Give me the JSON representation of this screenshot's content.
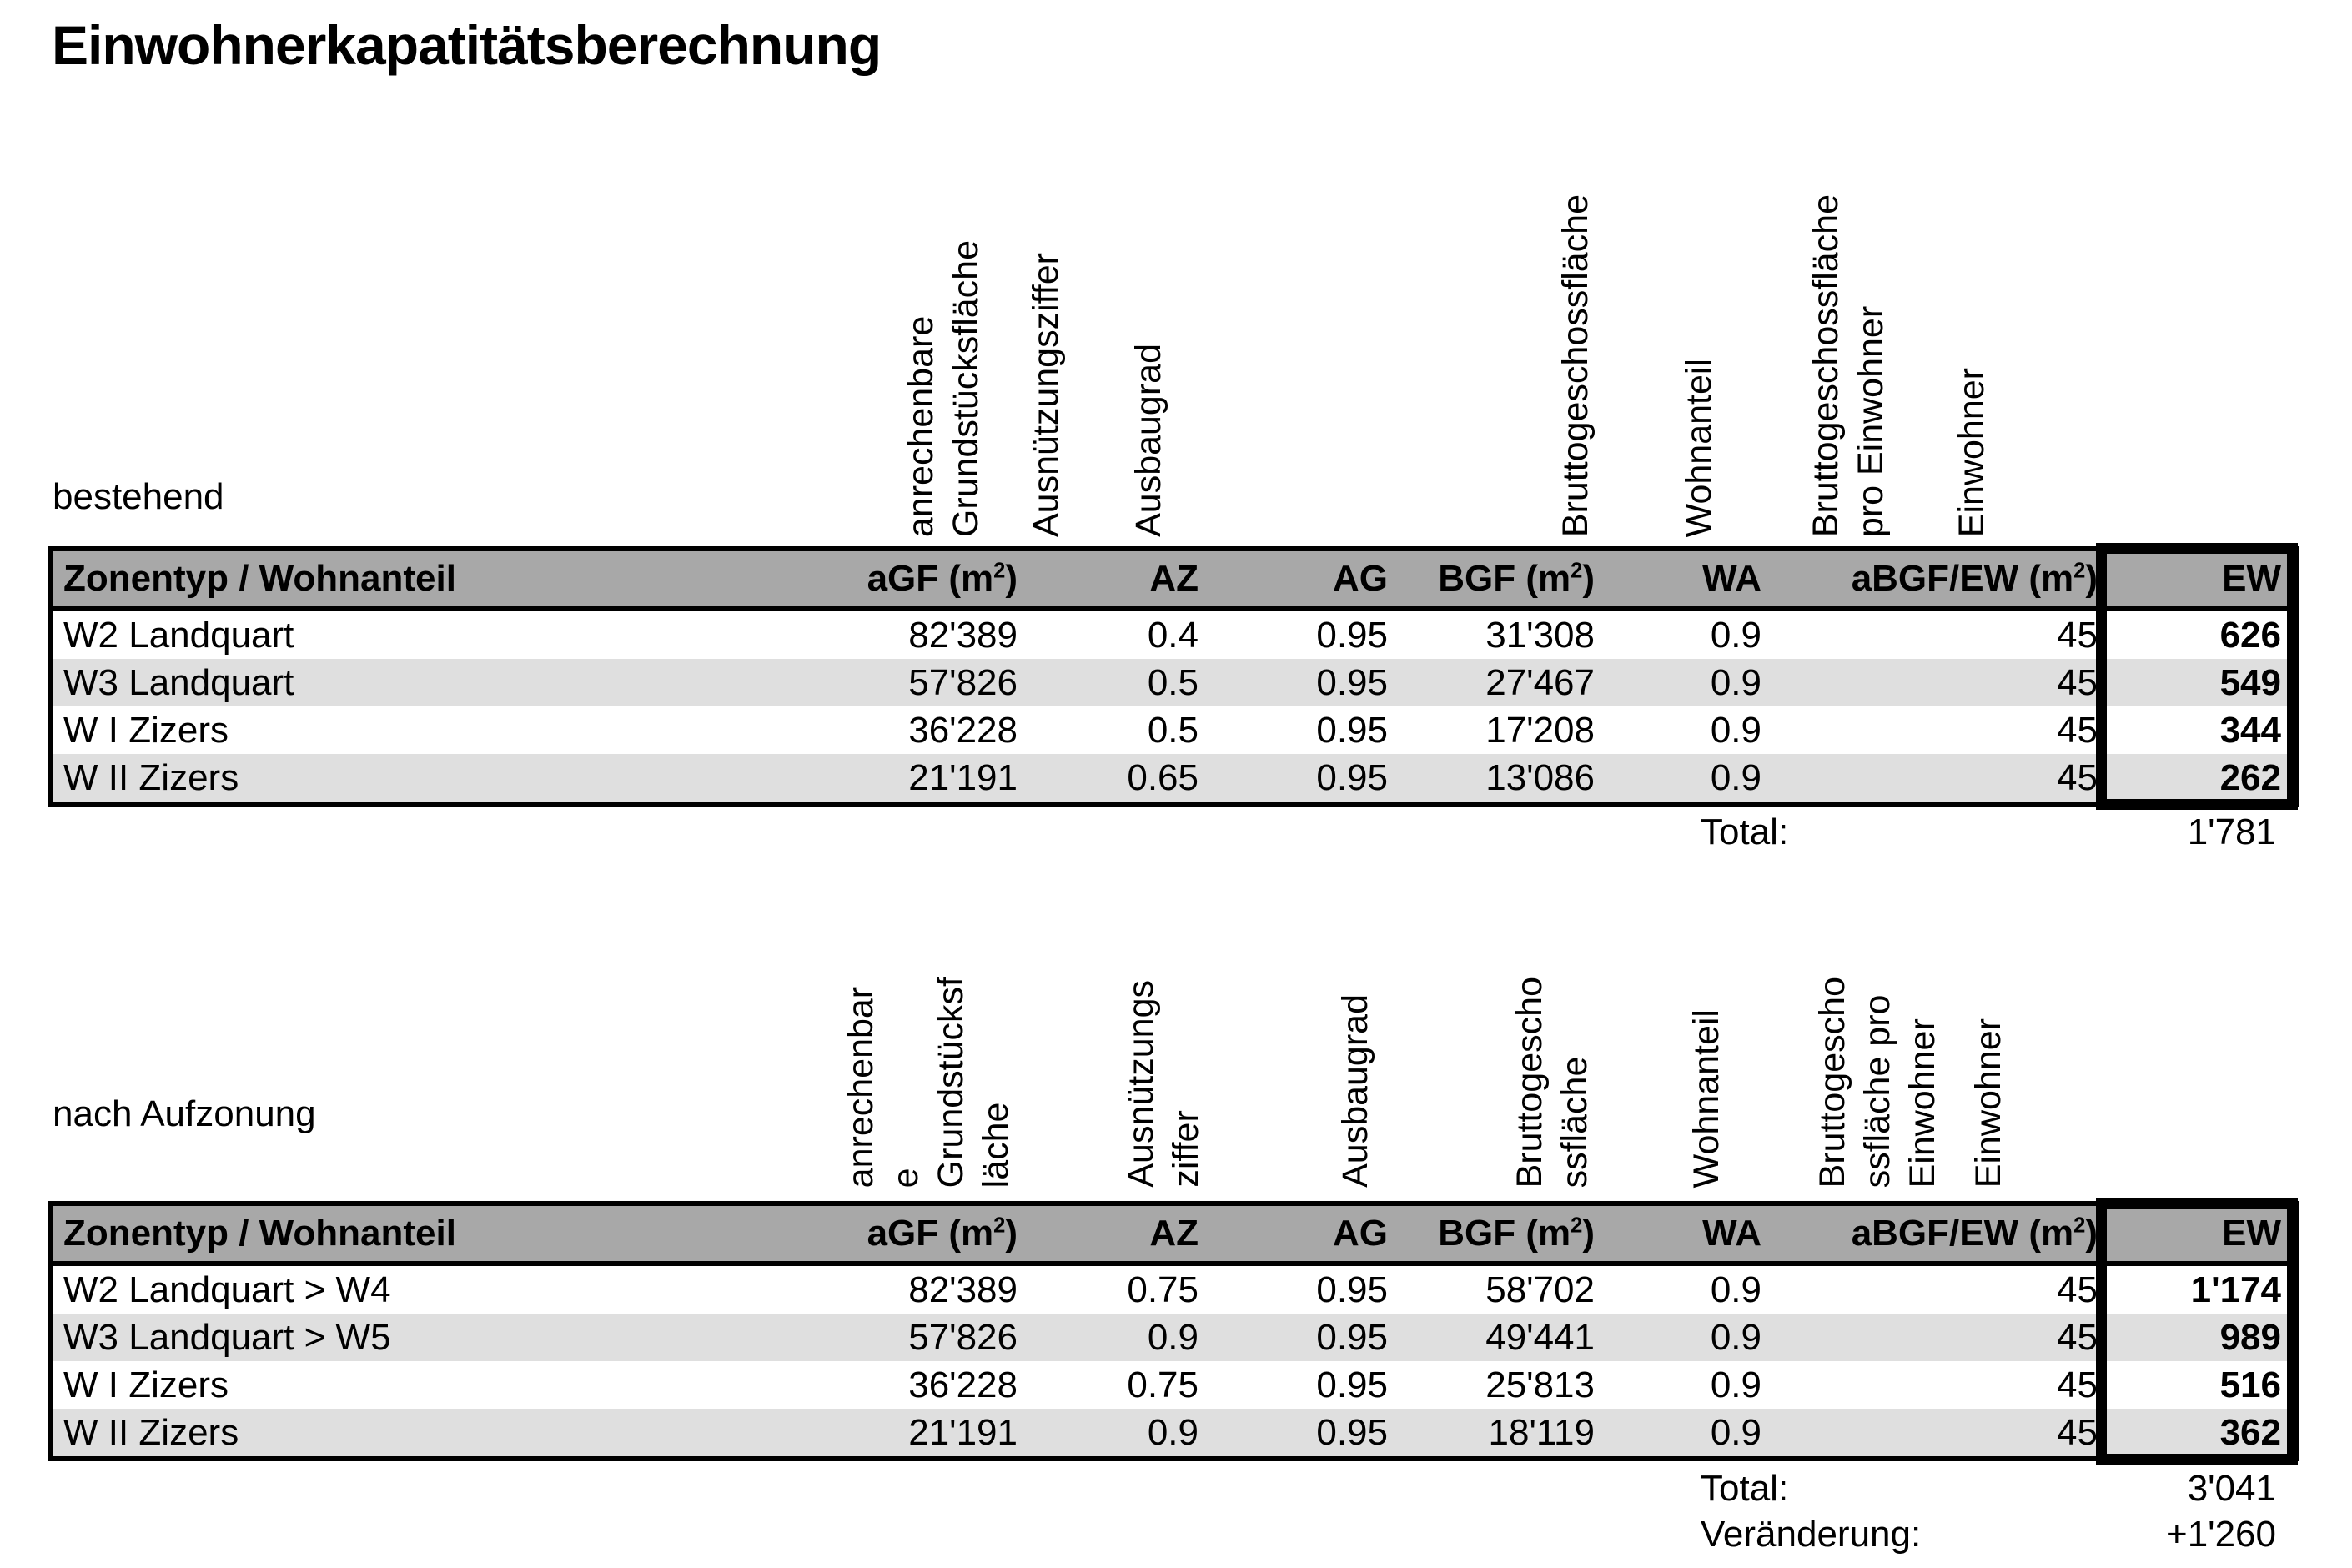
{
  "title": "Einwohnerkapatitätsberechnung",
  "colors": {
    "header_bg": "#a8a8a8",
    "stripe_bg": "#dfdfdf",
    "border": "#000000",
    "page_bg": "#ffffff"
  },
  "sections": [
    {
      "label": "bestehend",
      "rotated": [
        "anrechenbare\nGrundstücksfläche",
        "Ausnützungsziffer",
        "Ausbaugrad",
        "Bruttogeschossfläche",
        "Wohnanteil",
        "Bruttogeschossfläche\npro Einwohner",
        "Einwohner"
      ],
      "columns": [
        "Zonentyp / Wohnanteil",
        "aGF (m²)",
        "AZ",
        "AG",
        "BGF (m²)",
        "WA",
        "aBGF/EW (m²)",
        "EW"
      ],
      "rows": [
        [
          "W2 Landquart",
          "82'389",
          "0.4",
          "0.95",
          "31'308",
          "0.9",
          "45",
          "626"
        ],
        [
          "W3 Landquart",
          "57'826",
          "0.5",
          "0.95",
          "27'467",
          "0.9",
          "45",
          "549"
        ],
        [
          "W I Zizers",
          "36'228",
          "0.5",
          "0.95",
          "17'208",
          "0.9",
          "45",
          "344"
        ],
        [
          "W II Zizers",
          "21'191",
          "0.65",
          "0.95",
          "13'086",
          "0.9",
          "45",
          "262"
        ]
      ],
      "totals": [
        {
          "label": "Total:",
          "value": "1'781"
        }
      ]
    },
    {
      "label": "nach Aufzonung",
      "rotated": [
        "anrechenbar\ne\nGrundstücksf\nläche",
        "Ausnützungs\nziffer",
        "Ausbaugrad",
        "Bruttogescho\nssfläche",
        "Wohnanteil",
        "Bruttogescho\nssfläche pro\nEinwohner",
        "Einwohner"
      ],
      "columns": [
        "Zonentyp / Wohnanteil",
        "aGF (m²)",
        "AZ",
        "AG",
        "BGF (m²)",
        "WA",
        "aBGF/EW (m²)",
        "EW"
      ],
      "rows": [
        [
          "W2 Landquart > W4",
          "82'389",
          "0.75",
          "0.95",
          "58'702",
          "0.9",
          "45",
          "1'174"
        ],
        [
          "W3 Landquart > W5",
          "57'826",
          "0.9",
          "0.95",
          "49'441",
          "0.9",
          "45",
          "989"
        ],
        [
          "W I Zizers",
          "36'228",
          "0.75",
          "0.95",
          "25'813",
          "0.9",
          "45",
          "516"
        ],
        [
          "W II Zizers",
          "21'191",
          "0.9",
          "0.95",
          "18'119",
          "0.9",
          "45",
          "362"
        ]
      ],
      "totals": [
        {
          "label": "Total:",
          "value": "3'041"
        },
        {
          "label": "Veränderung:",
          "value": "+1'260"
        }
      ]
    }
  ]
}
